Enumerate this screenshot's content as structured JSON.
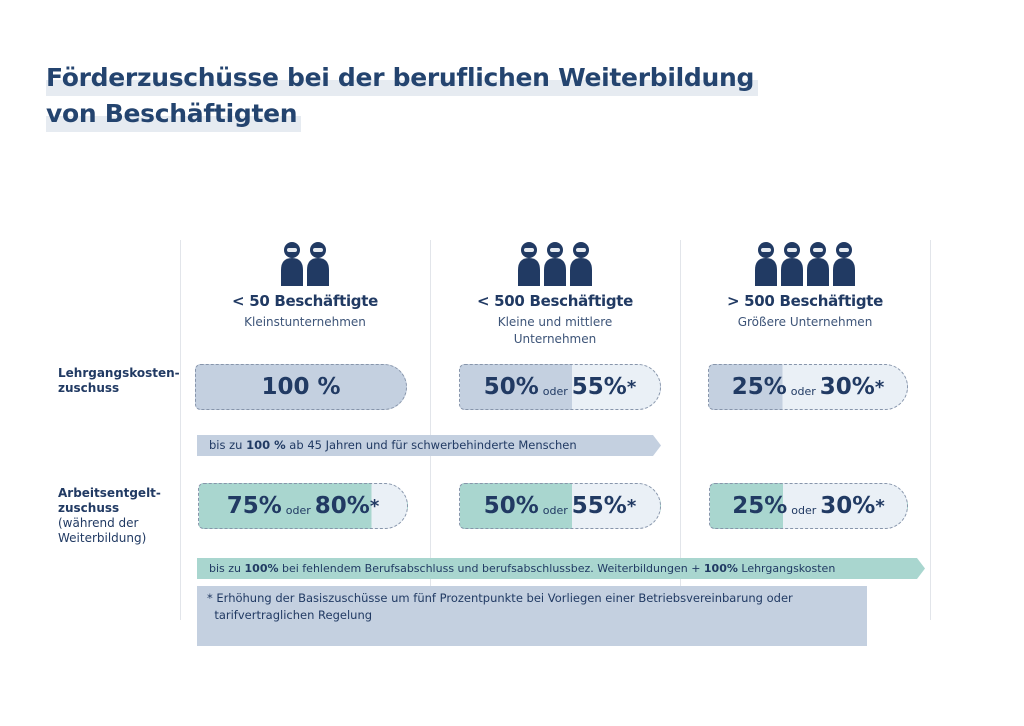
{
  "title": {
    "line1": "Förderzuschüsse bei der beruflichen Weiterbildung",
    "line2": "von Beschäftigten"
  },
  "columns": [
    {
      "title": "< 50 Beschäftigte",
      "subtitle": "Kleinstunternehmen",
      "people": 2
    },
    {
      "title": "< 500 Beschäftigte",
      "subtitle": "Kleine und mittlere Unternehmen",
      "people": 3
    },
    {
      "title": "> 500 Beschäftigte",
      "subtitle": "Größere Unternehmen",
      "people": 4
    }
  ],
  "rows": {
    "lehrgang": {
      "label1": "Lehrgangskosten-",
      "label2": "zuschuss",
      "values": [
        {
          "main": "100 %"
        },
        {
          "a": "50%",
          "or": "oder",
          "b": "55%",
          "star": "*"
        },
        {
          "a": "25%",
          "or": "oder",
          "b": "30%",
          "star": "*"
        }
      ],
      "note_pre": "bis zu ",
      "note_bold": "100 %",
      "note_post": " ab 45 Jahren und für schwerbehinderte Menschen"
    },
    "arbeitsentgelt": {
      "label1": "Arbeitsentgelt-",
      "label2": "zuschuss",
      "label3": "(während der",
      "label4": "Weiterbildung)",
      "values": [
        {
          "a": "75%",
          "or": "oder",
          "b": "80%",
          "star": "*"
        },
        {
          "a": "50%",
          "or": "oder",
          "b": "55%",
          "star": "*"
        },
        {
          "a": "25%",
          "or": "oder",
          "b": "30%",
          "star": "*"
        }
      ],
      "note_pre": "bis zu ",
      "note_bold": "100%",
      "note_mid": " bei fehlendem Berufsabschluss und berufsabschlussbez. Weiterbildungen + ",
      "note_bold2": "100%",
      "note_post": " Lehrgangskosten"
    }
  },
  "footnote": {
    "line1": "* Erhöhung der Basiszuschüsse um fünf Prozentpunkte bei Vorliegen einer Betriebsvereinbarung oder",
    "line2": "tarifvertraglichen Regelung"
  },
  "colors": {
    "navy": "#213a63",
    "blue": "#c4d0e0",
    "teal": "#a9d6cf",
    "light": "#eaf0f6"
  }
}
